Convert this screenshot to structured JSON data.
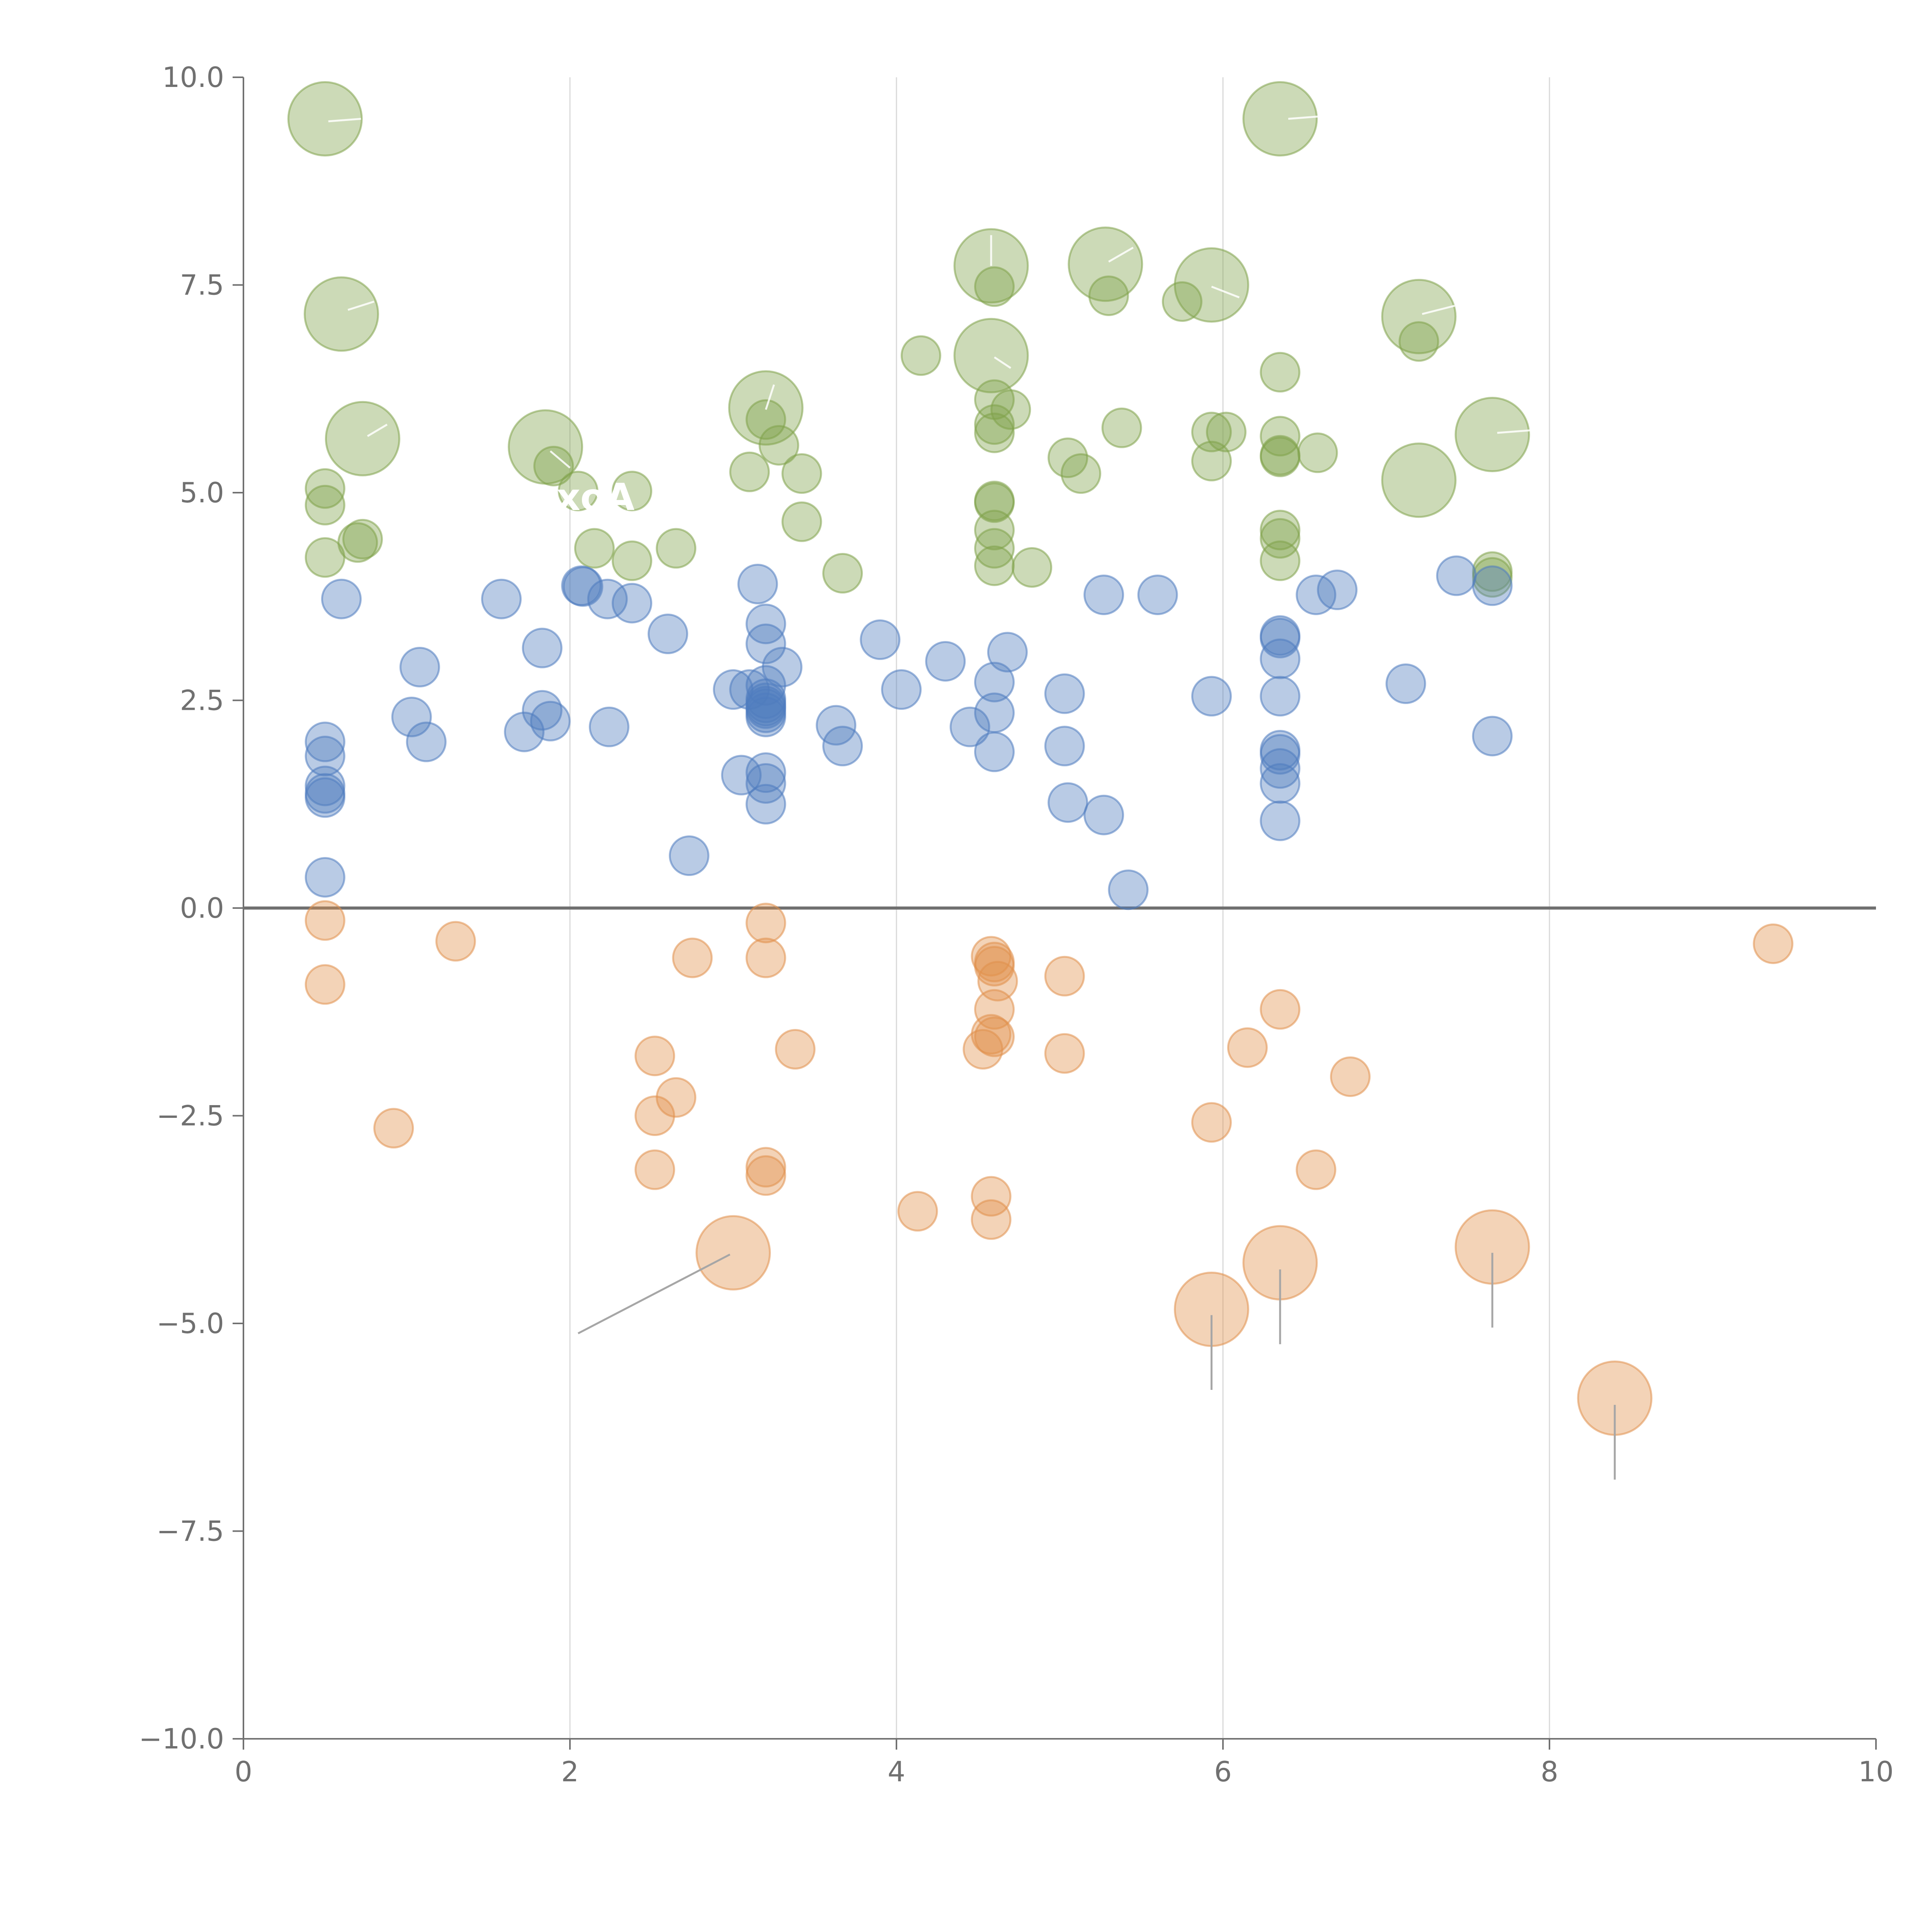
{
  "chart_data": {
    "type": "scatter",
    "title": "",
    "xlabel": "",
    "ylabel": "",
    "xlim": [
      0,
      10
    ],
    "ylim": [
      -10,
      10
    ],
    "x_ticks": [
      0,
      2,
      4,
      6,
      8,
      10
    ],
    "x_tick_labels": [
      "0",
      "2",
      "4",
      "6",
      "8",
      "10"
    ],
    "y_ticks": [
      10,
      7.5,
      5,
      2.5,
      0,
      -2.5,
      -5,
      -7.5,
      -10
    ],
    "y_tick_labels": [
      "10.0",
      "7.5",
      "5.0",
      "2.5",
      "0.0",
      "−2.5",
      "−5.0",
      "−7.5",
      "−10.0"
    ],
    "vertical_gridlines": [
      2,
      4,
      6,
      8
    ],
    "zero_line": 0,
    "legend": "none",
    "series": [
      {
        "color": "#7fa34a",
        "points": [
          [
            0.5,
            9.5,
            2
          ],
          [
            0.6,
            7.15,
            2
          ],
          [
            0.73,
            5.65,
            2
          ],
          [
            0.5,
            5.05,
            1
          ],
          [
            0.5,
            4.85,
            1
          ],
          [
            0.5,
            4.22,
            1
          ],
          [
            0.7,
            4.4,
            1
          ],
          [
            0.73,
            4.44,
            1
          ],
          [
            1.85,
            5.55,
            2
          ],
          [
            1.9,
            5.32,
            1
          ],
          [
            2.05,
            5.02,
            1
          ],
          [
            2.38,
            5.02,
            1
          ],
          [
            2.15,
            4.33,
            1
          ],
          [
            2.38,
            4.18,
            1
          ],
          [
            2.65,
            4.33,
            1
          ],
          [
            3.2,
            6.02,
            2
          ],
          [
            3.2,
            5.88,
            1
          ],
          [
            3.28,
            5.57,
            1
          ],
          [
            3.1,
            5.25,
            1
          ],
          [
            3.42,
            5.23,
            1
          ],
          [
            3.42,
            4.65,
            1
          ],
          [
            3.67,
            4.03,
            1
          ],
          [
            4.15,
            6.65,
            1
          ],
          [
            4.58,
            7.73,
            2
          ],
          [
            4.6,
            7.48,
            1
          ],
          [
            4.58,
            6.65,
            2
          ],
          [
            4.6,
            6.12,
            1
          ],
          [
            4.7,
            6.0,
            1
          ],
          [
            4.6,
            5.82,
            1
          ],
          [
            4.6,
            5.72,
            1
          ],
          [
            4.6,
            4.9,
            1
          ],
          [
            4.6,
            4.88,
            1
          ],
          [
            4.6,
            4.55,
            1
          ],
          [
            4.6,
            4.33,
            1
          ],
          [
            4.6,
            4.12,
            1
          ],
          [
            4.83,
            4.1,
            1
          ],
          [
            5.28,
            7.75,
            2
          ],
          [
            5.3,
            7.37,
            1
          ],
          [
            5.05,
            5.42,
            1
          ],
          [
            5.13,
            5.23,
            1
          ],
          [
            5.38,
            5.78,
            1
          ],
          [
            5.93,
            7.5,
            2
          ],
          [
            5.75,
            7.3,
            1
          ],
          [
            5.93,
            5.73,
            1
          ],
          [
            6.02,
            5.73,
            1
          ],
          [
            5.93,
            5.38,
            1
          ],
          [
            6.35,
            9.5,
            2
          ],
          [
            6.35,
            6.45,
            1
          ],
          [
            6.35,
            5.68,
            1
          ],
          [
            6.35,
            5.45,
            1
          ],
          [
            6.35,
            5.43,
            1
          ],
          [
            6.58,
            5.48,
            1
          ],
          [
            6.35,
            4.55,
            1
          ],
          [
            6.35,
            4.45,
            1
          ],
          [
            6.35,
            4.18,
            1
          ],
          [
            7.2,
            7.12,
            2
          ],
          [
            7.2,
            6.82,
            1
          ],
          [
            7.2,
            5.15,
            2
          ],
          [
            7.65,
            5.7,
            2
          ],
          [
            7.65,
            4.05,
            1
          ],
          [
            7.65,
            3.98,
            1
          ]
        ]
      },
      {
        "color": "#4f7cbf",
        "points": [
          [
            0.6,
            3.72,
            1
          ],
          [
            0.5,
            2.0,
            1
          ],
          [
            0.5,
            1.83,
            1
          ],
          [
            0.5,
            1.47,
            1
          ],
          [
            0.5,
            1.38,
            1
          ],
          [
            0.5,
            1.33,
            1
          ],
          [
            0.5,
            0.37,
            1
          ],
          [
            1.08,
            2.9,
            1
          ],
          [
            1.03,
            2.3,
            1
          ],
          [
            1.12,
            2.0,
            1
          ],
          [
            1.58,
            3.72,
            1
          ],
          [
            1.83,
            3.13,
            1
          ],
          [
            1.83,
            2.38,
            1
          ],
          [
            1.88,
            2.25,
            1
          ],
          [
            1.72,
            2.12,
            1
          ],
          [
            2.07,
            3.88,
            1
          ],
          [
            2.08,
            3.87,
            1
          ],
          [
            2.23,
            3.72,
            1
          ],
          [
            2.38,
            3.67,
            1
          ],
          [
            2.24,
            2.18,
            1
          ],
          [
            2.6,
            3.3,
            1
          ],
          [
            2.73,
            0.63,
            1
          ],
          [
            3.15,
            3.9,
            1
          ],
          [
            3.2,
            3.42,
            1
          ],
          [
            3.2,
            3.18,
            1
          ],
          [
            3.3,
            2.9,
            1
          ],
          [
            3.0,
            2.63,
            1
          ],
          [
            3.1,
            2.63,
            1
          ],
          [
            3.2,
            2.68,
            1
          ],
          [
            3.2,
            2.52,
            1
          ],
          [
            3.2,
            2.47,
            1
          ],
          [
            3.2,
            2.43,
            1
          ],
          [
            3.2,
            2.4,
            1
          ],
          [
            3.2,
            2.35,
            1
          ],
          [
            3.2,
            2.3,
            1
          ],
          [
            3.05,
            1.6,
            1
          ],
          [
            3.2,
            1.63,
            1
          ],
          [
            3.2,
            1.5,
            1
          ],
          [
            3.2,
            1.25,
            1
          ],
          [
            3.63,
            2.2,
            1
          ],
          [
            3.67,
            1.95,
            1
          ],
          [
            3.9,
            3.23,
            1
          ],
          [
            4.03,
            2.63,
            1
          ],
          [
            4.3,
            2.97,
            1
          ],
          [
            4.45,
            2.18,
            1
          ],
          [
            4.6,
            2.72,
            1
          ],
          [
            4.6,
            2.35,
            1
          ],
          [
            4.6,
            1.88,
            1
          ],
          [
            4.68,
            3.08,
            1
          ],
          [
            5.03,
            2.58,
            1
          ],
          [
            5.03,
            1.95,
            1
          ],
          [
            5.05,
            1.27,
            1
          ],
          [
            5.27,
            1.12,
            1
          ],
          [
            5.27,
            3.77,
            1
          ],
          [
            5.42,
            0.22,
            1
          ],
          [
            5.6,
            3.77,
            1
          ],
          [
            5.93,
            2.55,
            1
          ],
          [
            6.35,
            3.28,
            1
          ],
          [
            6.35,
            3.25,
            1
          ],
          [
            6.35,
            3.0,
            1
          ],
          [
            6.35,
            2.55,
            1
          ],
          [
            6.35,
            1.9,
            1
          ],
          [
            6.35,
            1.85,
            1
          ],
          [
            6.35,
            1.68,
            1
          ],
          [
            6.35,
            1.5,
            1
          ],
          [
            6.35,
            1.05,
            1
          ],
          [
            6.57,
            3.77,
            1
          ],
          [
            6.7,
            3.83,
            1
          ],
          [
            7.12,
            2.7,
            1
          ],
          [
            7.43,
            4.0,
            1
          ],
          [
            7.65,
            3.88,
            1
          ],
          [
            7.65,
            2.07,
            1
          ]
        ]
      },
      {
        "color": "#e0904c",
        "points": [
          [
            0.5,
            -0.15,
            1
          ],
          [
            0.5,
            -0.92,
            1
          ],
          [
            0.92,
            -2.65,
            1
          ],
          [
            1.3,
            -0.4,
            1
          ],
          [
            2.52,
            -1.78,
            1
          ],
          [
            2.52,
            -2.5,
            1
          ],
          [
            2.65,
            -2.28,
            1
          ],
          [
            2.52,
            -3.15,
            1
          ],
          [
            2.75,
            -0.6,
            1
          ],
          [
            3.2,
            -0.18,
            1
          ],
          [
            3.2,
            -0.6,
            1
          ],
          [
            3.38,
            -1.7,
            1
          ],
          [
            3.2,
            -3.12,
            1
          ],
          [
            3.2,
            -3.22,
            1
          ],
          [
            3.0,
            -4.15,
            2
          ],
          [
            4.13,
            -3.65,
            1
          ],
          [
            4.58,
            -0.58,
            1
          ],
          [
            4.6,
            -0.65,
            1
          ],
          [
            4.6,
            -0.7,
            1
          ],
          [
            4.62,
            -0.88,
            1
          ],
          [
            4.6,
            -1.22,
            1
          ],
          [
            4.58,
            -1.52,
            1
          ],
          [
            4.6,
            -1.55,
            1
          ],
          [
            4.53,
            -1.7,
            1
          ],
          [
            4.58,
            -3.47,
            1
          ],
          [
            4.58,
            -3.75,
            1
          ],
          [
            5.03,
            -0.82,
            1
          ],
          [
            5.03,
            -1.75,
            1
          ],
          [
            5.93,
            -2.58,
            1
          ],
          [
            5.93,
            -4.83,
            2
          ],
          [
            6.15,
            -1.68,
            1
          ],
          [
            6.35,
            -1.22,
            1
          ],
          [
            6.35,
            -4.27,
            2
          ],
          [
            6.57,
            -3.15,
            1
          ],
          [
            6.78,
            -2.03,
            1
          ],
          [
            7.65,
            -4.08,
            2
          ],
          [
            8.4,
            -5.9,
            2
          ],
          [
            9.37,
            -0.43,
            1
          ]
        ]
      }
    ],
    "leader_lines": [
      [
        [
          0.52,
          9.47
        ],
        [
          0.72,
          9.5
        ]
      ],
      [
        [
          0.64,
          7.2
        ],
        [
          0.8,
          7.3
        ]
      ],
      [
        [
          0.76,
          5.68
        ],
        [
          0.88,
          5.82
        ]
      ],
      [
        [
          1.88,
          5.5
        ],
        [
          2.0,
          5.3
        ]
      ],
      [
        [
          3.2,
          6.0
        ],
        [
          3.25,
          6.3
        ]
      ],
      [
        [
          4.58,
          7.73
        ],
        [
          4.58,
          8.1
        ]
      ],
      [
        [
          4.6,
          6.63
        ],
        [
          4.7,
          6.5
        ]
      ],
      [
        [
          5.3,
          7.78
        ],
        [
          5.45,
          7.95
        ]
      ],
      [
        [
          5.93,
          7.48
        ],
        [
          6.1,
          7.35
        ]
      ],
      [
        [
          6.4,
          9.5
        ],
        [
          6.6,
          9.53
        ]
      ],
      [
        [
          7.22,
          7.15
        ],
        [
          7.42,
          7.25
        ]
      ],
      [
        [
          7.68,
          5.72
        ],
        [
          7.88,
          5.75
        ]
      ],
      [
        [
          2.98,
          -4.17
        ],
        [
          2.05,
          -5.12
        ]
      ],
      [
        [
          5.93,
          -4.9
        ],
        [
          5.93,
          -5.8
        ]
      ],
      [
        [
          6.35,
          -4.35
        ],
        [
          6.35,
          -5.25
        ]
      ],
      [
        [
          7.65,
          -4.15
        ],
        [
          7.65,
          -5.05
        ]
      ],
      [
        [
          8.4,
          -5.98
        ],
        [
          8.4,
          -6.88
        ]
      ]
    ],
    "annotations": [
      "xoA"
    ]
  }
}
